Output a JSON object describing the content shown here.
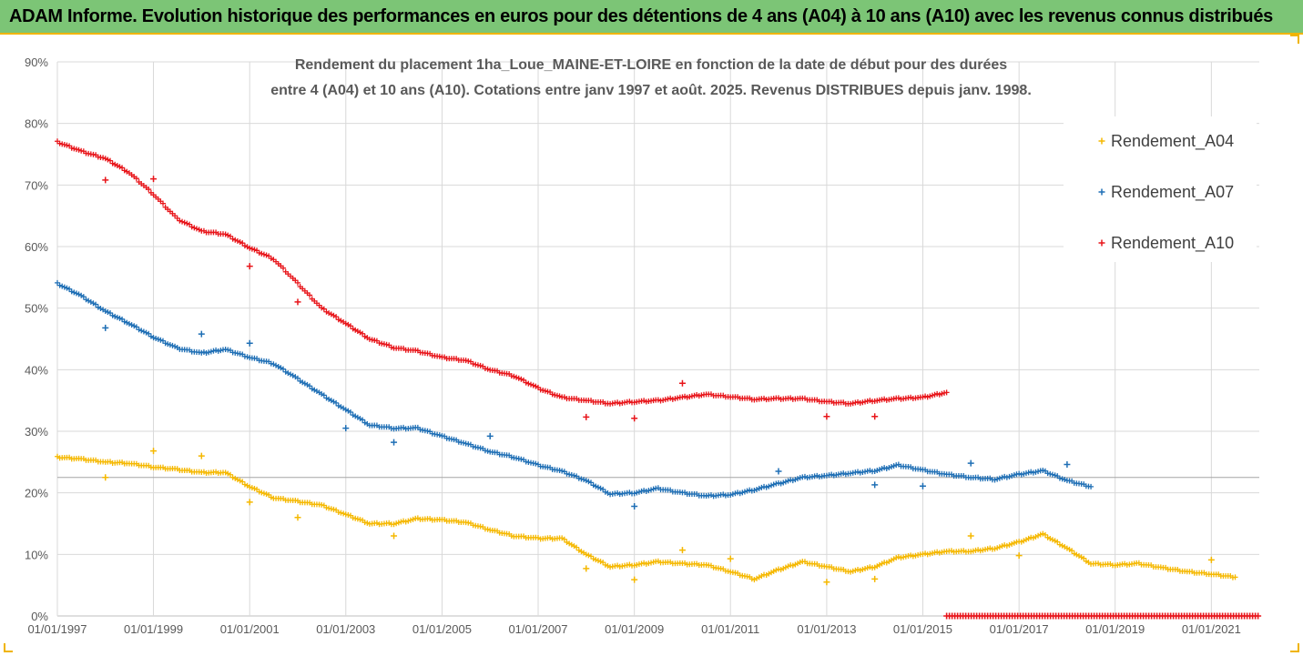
{
  "banner": {
    "title": "ADAM Informe. Evolution historique des performances en euros pour des détentions de 4 ans (A04) à 10 ans (A10) avec les revenus connus distribués"
  },
  "colors": {
    "banner_bg": "#7cc576",
    "banner_border": "#f0b400",
    "A04": "#f5b800",
    "A07": "#1f6fb5",
    "A10": "#e8151a",
    "grid": "#d9d9d9"
  },
  "chart_data": {
    "type": "scatter",
    "title_lines": [
      "Rendement du placement 1ha_Loue_MAINE-ET-LOIRE en fonction de la date de début pour des durées",
      "entre 4 (A04) et 10 ans (A10). Cotations entre janv 1997 et août. 2025. Revenus DISTRIBUES depuis janv. 1998."
    ],
    "x_tick_labels": [
      "01/01/1997",
      "01/01/1999",
      "01/01/2001",
      "01/01/2003",
      "01/01/2005",
      "01/01/2007",
      "01/01/2009",
      "01/01/2011",
      "01/01/2013",
      "01/01/2015",
      "01/01/2017",
      "01/01/2019",
      "01/01/2021"
    ],
    "xlim": [
      "1997-01-01",
      "2021-12-31"
    ],
    "y_tick_labels": [
      "0%",
      "10%",
      "20%",
      "30%",
      "40%",
      "50%",
      "60%",
      "70%",
      "80%",
      "90%"
    ],
    "ylim": [
      0,
      90
    ],
    "grid": true,
    "legend_position": "top-right",
    "marker": "+",
    "series": [
      {
        "name": "Rendement_A04",
        "color": "#f5b800",
        "line": [
          [
            "1997-01-01",
            25.8
          ],
          [
            "1997-07-01",
            25.5
          ],
          [
            "1998-01-01",
            25.0
          ],
          [
            "1998-07-01",
            24.8
          ],
          [
            "1999-01-01",
            24.2
          ],
          [
            "1999-07-01",
            23.8
          ],
          [
            "2000-01-01",
            23.3
          ],
          [
            "2000-07-01",
            23.3
          ],
          [
            "2001-01-01",
            21.0
          ],
          [
            "2001-07-01",
            19.2
          ],
          [
            "2002-01-01",
            18.6
          ],
          [
            "2002-07-01",
            18.0
          ],
          [
            "2003-01-01",
            16.5
          ],
          [
            "2003-07-01",
            15.0
          ],
          [
            "2004-01-01",
            15.0
          ],
          [
            "2004-07-01",
            15.8
          ],
          [
            "2005-01-01",
            15.6
          ],
          [
            "2005-07-01",
            15.2
          ],
          [
            "2006-01-01",
            14.0
          ],
          [
            "2006-07-01",
            13.0
          ],
          [
            "2007-01-01",
            12.6
          ],
          [
            "2007-07-01",
            12.6
          ],
          [
            "2008-01-01",
            10.0
          ],
          [
            "2008-07-01",
            8.0
          ],
          [
            "2009-01-01",
            8.3
          ],
          [
            "2009-07-01",
            8.8
          ],
          [
            "2010-01-01",
            8.5
          ],
          [
            "2010-07-01",
            8.3
          ],
          [
            "2011-01-01",
            7.2
          ],
          [
            "2011-07-01",
            6.0
          ],
          [
            "2012-01-01",
            7.5
          ],
          [
            "2012-07-01",
            8.8
          ],
          [
            "2013-01-01",
            8.0
          ],
          [
            "2013-07-01",
            7.2
          ],
          [
            "2014-01-01",
            8.0
          ],
          [
            "2014-07-01",
            9.5
          ],
          [
            "2015-01-01",
            10.0
          ],
          [
            "2015-07-01",
            10.5
          ],
          [
            "2016-01-01",
            10.5
          ],
          [
            "2016-07-01",
            11.0
          ],
          [
            "2017-01-01",
            12.0
          ],
          [
            "2017-07-01",
            13.3
          ],
          [
            "2018-01-01",
            11.0
          ],
          [
            "2018-07-01",
            8.5
          ],
          [
            "2019-01-01",
            8.3
          ],
          [
            "2019-07-01",
            8.5
          ],
          [
            "2020-01-01",
            7.8
          ],
          [
            "2020-07-01",
            7.2
          ],
          [
            "2021-01-01",
            6.8
          ],
          [
            "2021-07-01",
            6.3
          ]
        ],
        "scatter": [
          [
            "1998-01-01",
            22.5
          ],
          [
            "1999-01-01",
            26.8
          ],
          [
            "2000-01-01",
            26.0
          ],
          [
            "2001-01-01",
            18.5
          ],
          [
            "2002-01-01",
            16.0
          ],
          [
            "2004-01-01",
            13.0
          ],
          [
            "2008-01-01",
            7.7
          ],
          [
            "2009-01-01",
            5.9
          ],
          [
            "2010-01-01",
            10.7
          ],
          [
            "2011-01-01",
            9.3
          ],
          [
            "2013-01-01",
            5.5
          ],
          [
            "2014-01-01",
            6.0
          ],
          [
            "2016-01-01",
            13.0
          ],
          [
            "2017-01-01",
            9.8
          ],
          [
            "2021-01-01",
            9.1
          ]
        ]
      },
      {
        "name": "Rendement_A07",
        "color": "#1f6fb5",
        "line": [
          [
            "1997-01-01",
            54.0
          ],
          [
            "1997-07-01",
            52.0
          ],
          [
            "1998-01-01",
            49.5
          ],
          [
            "1998-07-01",
            47.5
          ],
          [
            "1999-01-01",
            45.3
          ],
          [
            "1999-07-01",
            43.5
          ],
          [
            "2000-01-01",
            42.7
          ],
          [
            "2000-07-01",
            43.3
          ],
          [
            "2001-01-01",
            42.0
          ],
          [
            "2001-07-01",
            41.0
          ],
          [
            "2002-01-01",
            38.5
          ],
          [
            "2002-07-01",
            36.0
          ],
          [
            "2003-01-01",
            33.5
          ],
          [
            "2003-07-01",
            31.0
          ],
          [
            "2004-01-01",
            30.5
          ],
          [
            "2004-07-01",
            30.5
          ],
          [
            "2005-01-01",
            29.2
          ],
          [
            "2005-07-01",
            28.0
          ],
          [
            "2006-01-01",
            26.7
          ],
          [
            "2006-07-01",
            25.8
          ],
          [
            "2007-01-01",
            24.5
          ],
          [
            "2007-07-01",
            23.5
          ],
          [
            "2008-01-01",
            22.0
          ],
          [
            "2008-07-01",
            19.8
          ],
          [
            "2009-01-01",
            20.0
          ],
          [
            "2009-07-01",
            20.7
          ],
          [
            "2010-01-01",
            20.0
          ],
          [
            "2010-07-01",
            19.5
          ],
          [
            "2011-01-01",
            19.7
          ],
          [
            "2011-07-01",
            20.5
          ],
          [
            "2012-01-01",
            21.5
          ],
          [
            "2012-07-01",
            22.5
          ],
          [
            "2013-01-01",
            22.8
          ],
          [
            "2013-07-01",
            23.2
          ],
          [
            "2014-01-01",
            23.6
          ],
          [
            "2014-07-01",
            24.5
          ],
          [
            "2015-01-01",
            23.7
          ],
          [
            "2015-07-01",
            23.0
          ],
          [
            "2016-01-01",
            22.5
          ],
          [
            "2016-07-01",
            22.2
          ],
          [
            "2017-01-01",
            23.0
          ],
          [
            "2017-07-01",
            23.6
          ],
          [
            "2018-01-01",
            22.0
          ],
          [
            "2018-07-01",
            21.0
          ]
        ],
        "scatter": [
          [
            "1998-01-01",
            46.8
          ],
          [
            "2000-01-01",
            45.8
          ],
          [
            "2001-01-01",
            44.3
          ],
          [
            "2003-01-01",
            30.5
          ],
          [
            "2004-01-01",
            28.2
          ],
          [
            "2006-01-01",
            29.2
          ],
          [
            "2009-01-01",
            17.8
          ],
          [
            "2012-01-01",
            23.5
          ],
          [
            "2014-01-01",
            21.3
          ],
          [
            "2015-01-01",
            21.1
          ],
          [
            "2016-01-01",
            24.8
          ],
          [
            "2018-01-01",
            24.6
          ]
        ]
      },
      {
        "name": "Rendement_A10",
        "color": "#e8151a",
        "line": [
          [
            "1997-01-01",
            77.0
          ],
          [
            "1997-07-01",
            75.5
          ],
          [
            "1998-01-01",
            74.3
          ],
          [
            "1998-07-01",
            72.0
          ],
          [
            "1999-01-01",
            68.5
          ],
          [
            "1999-07-01",
            64.5
          ],
          [
            "2000-01-01",
            62.5
          ],
          [
            "2000-07-01",
            62.0
          ],
          [
            "2001-01-01",
            59.8
          ],
          [
            "2001-07-01",
            58.0
          ],
          [
            "2002-01-01",
            54.0
          ],
          [
            "2002-07-01",
            50.0
          ],
          [
            "2003-01-01",
            47.5
          ],
          [
            "2003-07-01",
            45.0
          ],
          [
            "2004-01-01",
            43.6
          ],
          [
            "2004-07-01",
            43.0
          ],
          [
            "2005-01-01",
            42.0
          ],
          [
            "2005-07-01",
            41.5
          ],
          [
            "2006-01-01",
            40.0
          ],
          [
            "2006-07-01",
            39.0
          ],
          [
            "2007-01-01",
            37.0
          ],
          [
            "2007-07-01",
            35.5
          ],
          [
            "2008-01-01",
            35.0
          ],
          [
            "2008-07-01",
            34.5
          ],
          [
            "2009-01-01",
            34.8
          ],
          [
            "2009-07-01",
            35.0
          ],
          [
            "2010-01-01",
            35.5
          ],
          [
            "2010-07-01",
            36.0
          ],
          [
            "2011-01-01",
            35.6
          ],
          [
            "2011-07-01",
            35.2
          ],
          [
            "2012-01-01",
            35.3
          ],
          [
            "2012-07-01",
            35.3
          ],
          [
            "2013-01-01",
            34.8
          ],
          [
            "2013-07-01",
            34.5
          ],
          [
            "2014-01-01",
            35.0
          ],
          [
            "2014-07-01",
            35.3
          ],
          [
            "2015-01-01",
            35.5
          ],
          [
            "2015-07-01",
            36.3
          ]
        ],
        "scatter": [
          [
            "1998-01-01",
            70.8
          ],
          [
            "1999-01-01",
            71.0
          ],
          [
            "2001-01-01",
            56.8
          ],
          [
            "2002-01-01",
            51.0
          ],
          [
            "2008-01-01",
            32.3
          ],
          [
            "2009-01-01",
            32.1
          ],
          [
            "2010-01-01",
            37.8
          ],
          [
            "2013-01-01",
            32.4
          ],
          [
            "2014-01-01",
            32.4
          ]
        ],
        "zero_band": [
          "2015-07-01",
          "2021-12-31"
        ]
      }
    ]
  }
}
